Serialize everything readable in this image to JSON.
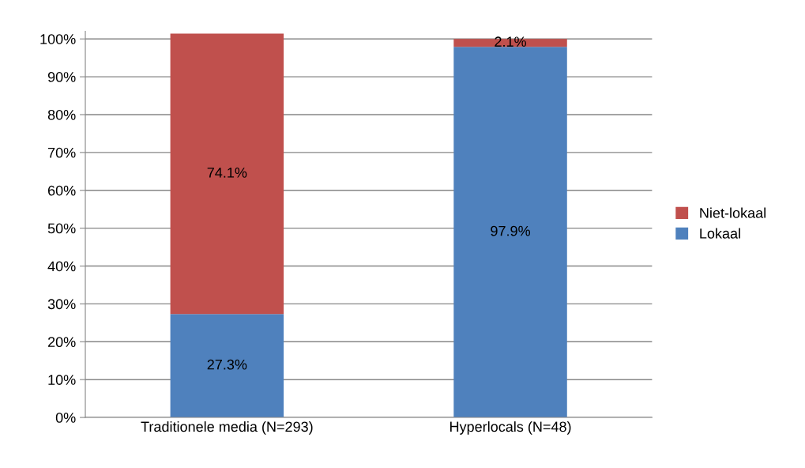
{
  "chart_data": {
    "type": "bar",
    "stacked": true,
    "categories": [
      "Traditionele media (N=293)",
      "Hyperlocals (N=48)"
    ],
    "series": [
      {
        "name": "Lokaal",
        "color": "#4f81bd",
        "values": [
          27.3,
          97.9
        ],
        "value_labels": [
          "27.3%",
          "97.9%"
        ]
      },
      {
        "name": "Niet-lokaal",
        "color": "#c0504d",
        "values": [
          74.1,
          2.1
        ],
        "value_labels": [
          "74.1%",
          "2.1%"
        ]
      }
    ],
    "ylim": [
      0,
      102
    ],
    "yticks": [
      {
        "value": 0,
        "label": "0%"
      },
      {
        "value": 10,
        "label": "10%"
      },
      {
        "value": 20,
        "label": "20%"
      },
      {
        "value": 30,
        "label": "30%"
      },
      {
        "value": 40,
        "label": "40%"
      },
      {
        "value": 50,
        "label": "50%"
      },
      {
        "value": 60,
        "label": "60%"
      },
      {
        "value": 70,
        "label": "70%"
      },
      {
        "value": 80,
        "label": "80%"
      },
      {
        "value": 90,
        "label": "90%"
      },
      {
        "value": 100,
        "label": "100%"
      }
    ],
    "grid": "y",
    "legend": "right"
  }
}
